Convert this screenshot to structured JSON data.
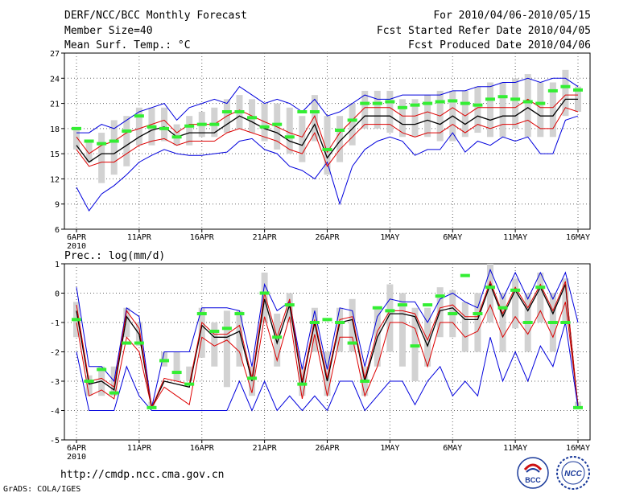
{
  "header": {
    "title": "DERF/NCC/BCC Monthly Forecast",
    "member": "Member Size=40",
    "variable": "Mean Surf. Temp.: °C",
    "forecast_period": "For 2010/04/06-2010/05/15",
    "refer_date": "Fcst Started Refer Date 2010/04/05",
    "produced_date": "Fcst Produced Date 2010/04/06"
  },
  "precip_label": "Prec.: log(mm/d)",
  "footer": {
    "url": "http://cmdp.ncc.cma.gov.cn",
    "credit": "GrADS: COLA/IGES",
    "logo1_text": "BCC",
    "logo2_text": "NCC"
  },
  "colors": {
    "blue": "#0000dd",
    "red": "#dd0000",
    "green": "#33ee33",
    "box": "#d2d2d2"
  },
  "chart_data": [
    {
      "type": "line",
      "name": "temperature",
      "ylabel": "Mean Surf. Temp.: °C",
      "ylim": [
        6,
        27
      ],
      "yticks": [
        6,
        9,
        12,
        15,
        18,
        21,
        24,
        27
      ],
      "xlim": [
        0,
        40
      ],
      "xtick_pos": [
        0,
        5,
        10,
        15,
        20,
        25,
        30,
        35,
        40
      ],
      "xtick_labels": [
        "6APR",
        "11APR",
        "16APR",
        "21APR",
        "26APR",
        "1MAY",
        "6MAY",
        "11MAY",
        "16MAY"
      ],
      "year_label": "2010",
      "series": [
        {
          "name": "max",
          "color": "blue",
          "values": [
            11.0,
            8.2,
            10.2,
            11.2,
            12.5,
            14.0,
            14.8,
            15.5,
            15.0,
            14.8,
            14.8,
            15.0,
            15.2,
            16.5,
            16.8,
            15.5,
            15.0,
            13.5,
            13.0,
            12.0,
            14.0,
            9.0,
            13.5,
            15.5,
            16.5,
            17.0,
            16.5,
            14.8,
            15.5,
            15.5,
            17.5,
            15.2,
            16.5,
            16.0,
            17.0,
            16.5,
            17.0,
            15.0,
            15.0,
            19.0,
            19.5
          ]
        },
        {
          "name": "upper",
          "color": "red",
          "values": [
            15.5,
            13.5,
            14.0,
            14.0,
            15.0,
            16.0,
            16.5,
            16.8,
            16.0,
            16.5,
            16.5,
            16.5,
            17.5,
            18.0,
            17.5,
            17.0,
            16.5,
            15.5,
            15.0,
            17.5,
            13.5,
            15.5,
            17.0,
            18.5,
            18.5,
            18.5,
            17.5,
            17.0,
            17.5,
            17.5,
            18.5,
            17.5,
            18.5,
            18.0,
            18.5,
            18.5,
            19.0,
            18.0,
            18.0,
            20.5,
            20.0
          ]
        },
        {
          "name": "ens_mean",
          "color": "black",
          "values": [
            16.0,
            14.0,
            15.0,
            15.0,
            16.0,
            17.0,
            17.8,
            18.2,
            17.0,
            17.5,
            17.5,
            17.5,
            18.5,
            19.5,
            18.8,
            18.0,
            17.5,
            16.5,
            16.0,
            18.5,
            14.5,
            16.5,
            18.0,
            19.5,
            19.5,
            19.5,
            18.5,
            18.5,
            19.0,
            18.5,
            19.5,
            18.5,
            19.5,
            19.0,
            19.5,
            19.5,
            20.5,
            19.5,
            19.5,
            21.5,
            21.5
          ]
        },
        {
          "name": "lower",
          "color": "red",
          "values": [
            17.0,
            15.0,
            16.0,
            16.5,
            17.5,
            18.0,
            18.5,
            19.0,
            17.5,
            18.5,
            18.5,
            18.5,
            19.5,
            20.2,
            19.5,
            18.8,
            18.2,
            17.5,
            17.0,
            19.5,
            15.2,
            17.5,
            19.0,
            20.5,
            20.5,
            20.5,
            19.5,
            19.5,
            20.0,
            19.5,
            20.5,
            19.5,
            20.5,
            20.5,
            20.5,
            20.5,
            21.5,
            20.5,
            20.5,
            22.0,
            22.0
          ]
        },
        {
          "name": "min",
          "color": "blue",
          "values": [
            17.5,
            17.5,
            18.5,
            18.0,
            19.0,
            20.0,
            20.5,
            21.0,
            19.0,
            20.5,
            21.0,
            21.5,
            21.0,
            23.0,
            22.0,
            21.0,
            21.5,
            21.0,
            20.0,
            21.5,
            19.5,
            20.0,
            21.0,
            22.0,
            21.5,
            21.5,
            22.0,
            22.0,
            22.0,
            22.0,
            22.5,
            22.5,
            23.0,
            23.0,
            23.5,
            23.5,
            24.0,
            23.5,
            24.0,
            24.0,
            23.0
          ]
        },
        {
          "name": "observed",
          "color": "green",
          "values": [
            18.0,
            16.5,
            16.2,
            16.5,
            17.7,
            19.5,
            18.2,
            18.0,
            17.0,
            18.3,
            18.5,
            18.5,
            20.0,
            20.0,
            19.3,
            18.2,
            18.5,
            17.0,
            20.0,
            20.0,
            15.5,
            17.8,
            19.0,
            21.0,
            21.0,
            21.2,
            20.5,
            20.8,
            21.0,
            21.2,
            21.3,
            21.0,
            20.8,
            21.5,
            21.8,
            21.5,
            21.2,
            21.0,
            22.5,
            23.0,
            22.6
          ]
        }
      ],
      "box_low": [
        15.5,
        14.0,
        11.5,
        12.5,
        13.5,
        16.0,
        16.0,
        16.5,
        16.0,
        16.0,
        17.0,
        17.0,
        17.5,
        18.0,
        17.5,
        16.5,
        15.5,
        15.0,
        14.0,
        16.5,
        12.5,
        14.0,
        16.0,
        18.0,
        18.0,
        17.5,
        17.0,
        17.0,
        17.0,
        16.5,
        16.5,
        17.0,
        17.5,
        17.0,
        17.0,
        18.0,
        17.0,
        17.0,
        17.0,
        19.5,
        20.0
      ],
      "box_high": [
        18.0,
        16.5,
        17.5,
        19.0,
        19.5,
        20.5,
        20.5,
        20.5,
        18.5,
        19.5,
        20.0,
        20.5,
        21.5,
        22.0,
        21.5,
        21.0,
        21.0,
        20.5,
        19.5,
        22.0,
        19.5,
        19.5,
        21.0,
        22.5,
        22.5,
        22.5,
        21.5,
        21.5,
        22.0,
        22.5,
        22.5,
        22.5,
        23.0,
        23.5,
        23.5,
        24.0,
        24.5,
        23.5,
        23.5,
        25.0,
        23.0
      ]
    },
    {
      "type": "line",
      "name": "precipitation",
      "ylabel": "Prec.: log(mm/d)",
      "ylim": [
        -5,
        1
      ],
      "yticks": [
        -5,
        -4,
        -3,
        -2,
        -1,
        0,
        1
      ],
      "xlim": [
        0,
        40
      ],
      "xtick_pos": [
        0,
        5,
        10,
        15,
        20,
        25,
        30,
        35,
        40
      ],
      "xtick_labels": [
        "6APR",
        "11APR",
        "16APR",
        "21APR",
        "26APR",
        "1MAY",
        "6MAY",
        "11MAY",
        "16MAY"
      ],
      "year_label": "2010",
      "series": [
        {
          "name": "max",
          "color": "blue",
          "values": [
            0.2,
            -2.5,
            -2.5,
            -3.0,
            -0.5,
            -0.8,
            -3.9,
            -2.0,
            -2.0,
            -2.0,
            -0.5,
            -0.5,
            -0.5,
            -0.6,
            -2.5,
            0.3,
            -0.6,
            -0.3,
            -2.6,
            -0.6,
            -2.6,
            -0.5,
            -0.6,
            -2.5,
            -0.8,
            -0.2,
            -0.3,
            -0.3,
            -1.0,
            -0.2,
            0.0,
            -0.3,
            -0.5,
            0.8,
            -0.2,
            0.7,
            -0.2,
            0.7,
            -0.2,
            0.7,
            -1.0
          ]
        },
        {
          "name": "upper",
          "color": "red",
          "values": [
            -1.0,
            -3.5,
            -3.3,
            -3.6,
            -1.5,
            -2.0,
            -3.9,
            -3.2,
            -3.5,
            -3.8,
            -1.5,
            -1.8,
            -1.6,
            -2.0,
            -3.4,
            -0.8,
            -2.3,
            -0.8,
            -3.6,
            -1.4,
            -3.5,
            -1.5,
            -1.5,
            -3.5,
            -2.5,
            -1.0,
            -1.0,
            -1.2,
            -2.5,
            -1.0,
            -1.0,
            -1.5,
            -1.3,
            -0.4,
            -1.5,
            -0.8,
            -1.4,
            -0.6,
            -1.5,
            -0.3,
            -3.8
          ]
        },
        {
          "name": "ens_mean",
          "color": "black",
          "values": [
            -0.6,
            -3.1,
            -3.0,
            -3.3,
            -0.8,
            -1.4,
            -3.9,
            -3.0,
            -3.1,
            -3.2,
            -1.1,
            -1.5,
            -1.5,
            -1.3,
            -3.0,
            -0.2,
            -1.7,
            -0.4,
            -3.1,
            -1.0,
            -3.0,
            -1.0,
            -0.9,
            -3.0,
            -1.5,
            -0.7,
            -0.7,
            -0.8,
            -1.8,
            -0.6,
            -0.5,
            -0.9,
            -0.9,
            0.3,
            -0.8,
            0.1,
            -0.6,
            0.2,
            -0.7,
            0.3,
            -3.9
          ]
        },
        {
          "name": "lower",
          "color": "red",
          "values": [
            -0.4,
            -3.0,
            -2.9,
            -3.2,
            -0.6,
            -1.2,
            -3.9,
            -2.9,
            -3.0,
            -3.1,
            -1.0,
            -1.4,
            -1.4,
            -1.1,
            -2.9,
            0.0,
            -1.5,
            -0.2,
            -3.0,
            -0.9,
            -2.9,
            -0.9,
            -0.8,
            -2.9,
            -1.3,
            -0.6,
            -0.6,
            -0.7,
            -1.6,
            -0.5,
            -0.4,
            -0.8,
            -0.8,
            0.4,
            -0.7,
            0.2,
            -0.5,
            0.3,
            -0.6,
            0.4,
            -3.9
          ]
        },
        {
          "name": "min",
          "color": "blue",
          "values": [
            -2.0,
            -4.0,
            -4.0,
            -4.0,
            -2.5,
            -3.5,
            -4.0,
            -4.0,
            -4.0,
            -4.0,
            -4.0,
            -4.0,
            -4.0,
            -3.0,
            -4.0,
            -3.0,
            -4.0,
            -3.5,
            -4.0,
            -3.5,
            -4.0,
            -3.0,
            -3.0,
            -4.0,
            -3.5,
            -3.0,
            -3.0,
            -3.8,
            -3.0,
            -2.5,
            -3.5,
            -3.0,
            -3.5,
            -1.5,
            -3.0,
            -2.0,
            -3.0,
            -1.8,
            -2.5,
            -1.0,
            -3.9
          ]
        },
        {
          "name": "observed",
          "color": "green",
          "values": [
            -0.9,
            -3.0,
            -2.6,
            -3.4,
            -1.7,
            -1.7,
            -3.9,
            -2.3,
            -2.7,
            -3.1,
            -0.7,
            -1.3,
            -1.2,
            -0.7,
            -2.9,
            0.0,
            -1.5,
            -0.4,
            -3.1,
            -1.0,
            -0.9,
            -1.0,
            -1.7,
            -3.0,
            -0.5,
            -0.6,
            -0.4,
            -1.8,
            -0.4,
            -0.1,
            -0.7,
            0.6,
            -0.7,
            0.2,
            -0.5,
            0.1,
            -1.0,
            0.2,
            -1.0,
            -1.0,
            -3.9
          ]
        }
      ],
      "box_low": [
        -1.5,
        -3.5,
        -3.5,
        -3.5,
        -1.5,
        -1.8,
        -3.9,
        -2.5,
        -3.0,
        -3.0,
        -2.2,
        -2.5,
        -3.2,
        -2.5,
        -3.5,
        -1.0,
        -2.5,
        -1.0,
        -3.5,
        -2.0,
        -3.5,
        -2.0,
        -2.0,
        -3.5,
        -2.5,
        -2.0,
        -2.5,
        -3.0,
        -2.5,
        -1.5,
        -1.5,
        -2.0,
        -2.0,
        -1.0,
        -2.0,
        -1.2,
        -2.0,
        -1.0,
        -2.0,
        -1.0,
        -3.9
      ],
      "box_high": [
        -0.3,
        -2.8,
        -2.5,
        -2.5,
        -0.5,
        -1.0,
        -3.7,
        -2.0,
        -2.0,
        -2.5,
        -0.5,
        -1.0,
        -0.6,
        -0.6,
        -2.5,
        0.7,
        -0.7,
        0.0,
        -2.5,
        -0.5,
        -2.0,
        -0.5,
        -0.2,
        -2.5,
        -0.5,
        0.3,
        0.0,
        -0.5,
        -0.5,
        0.2,
        0.1,
        -0.3,
        0.0,
        1.0,
        0.0,
        0.5,
        0.0,
        0.7,
        0.0,
        0.5,
        -3.7
      ]
    }
  ]
}
